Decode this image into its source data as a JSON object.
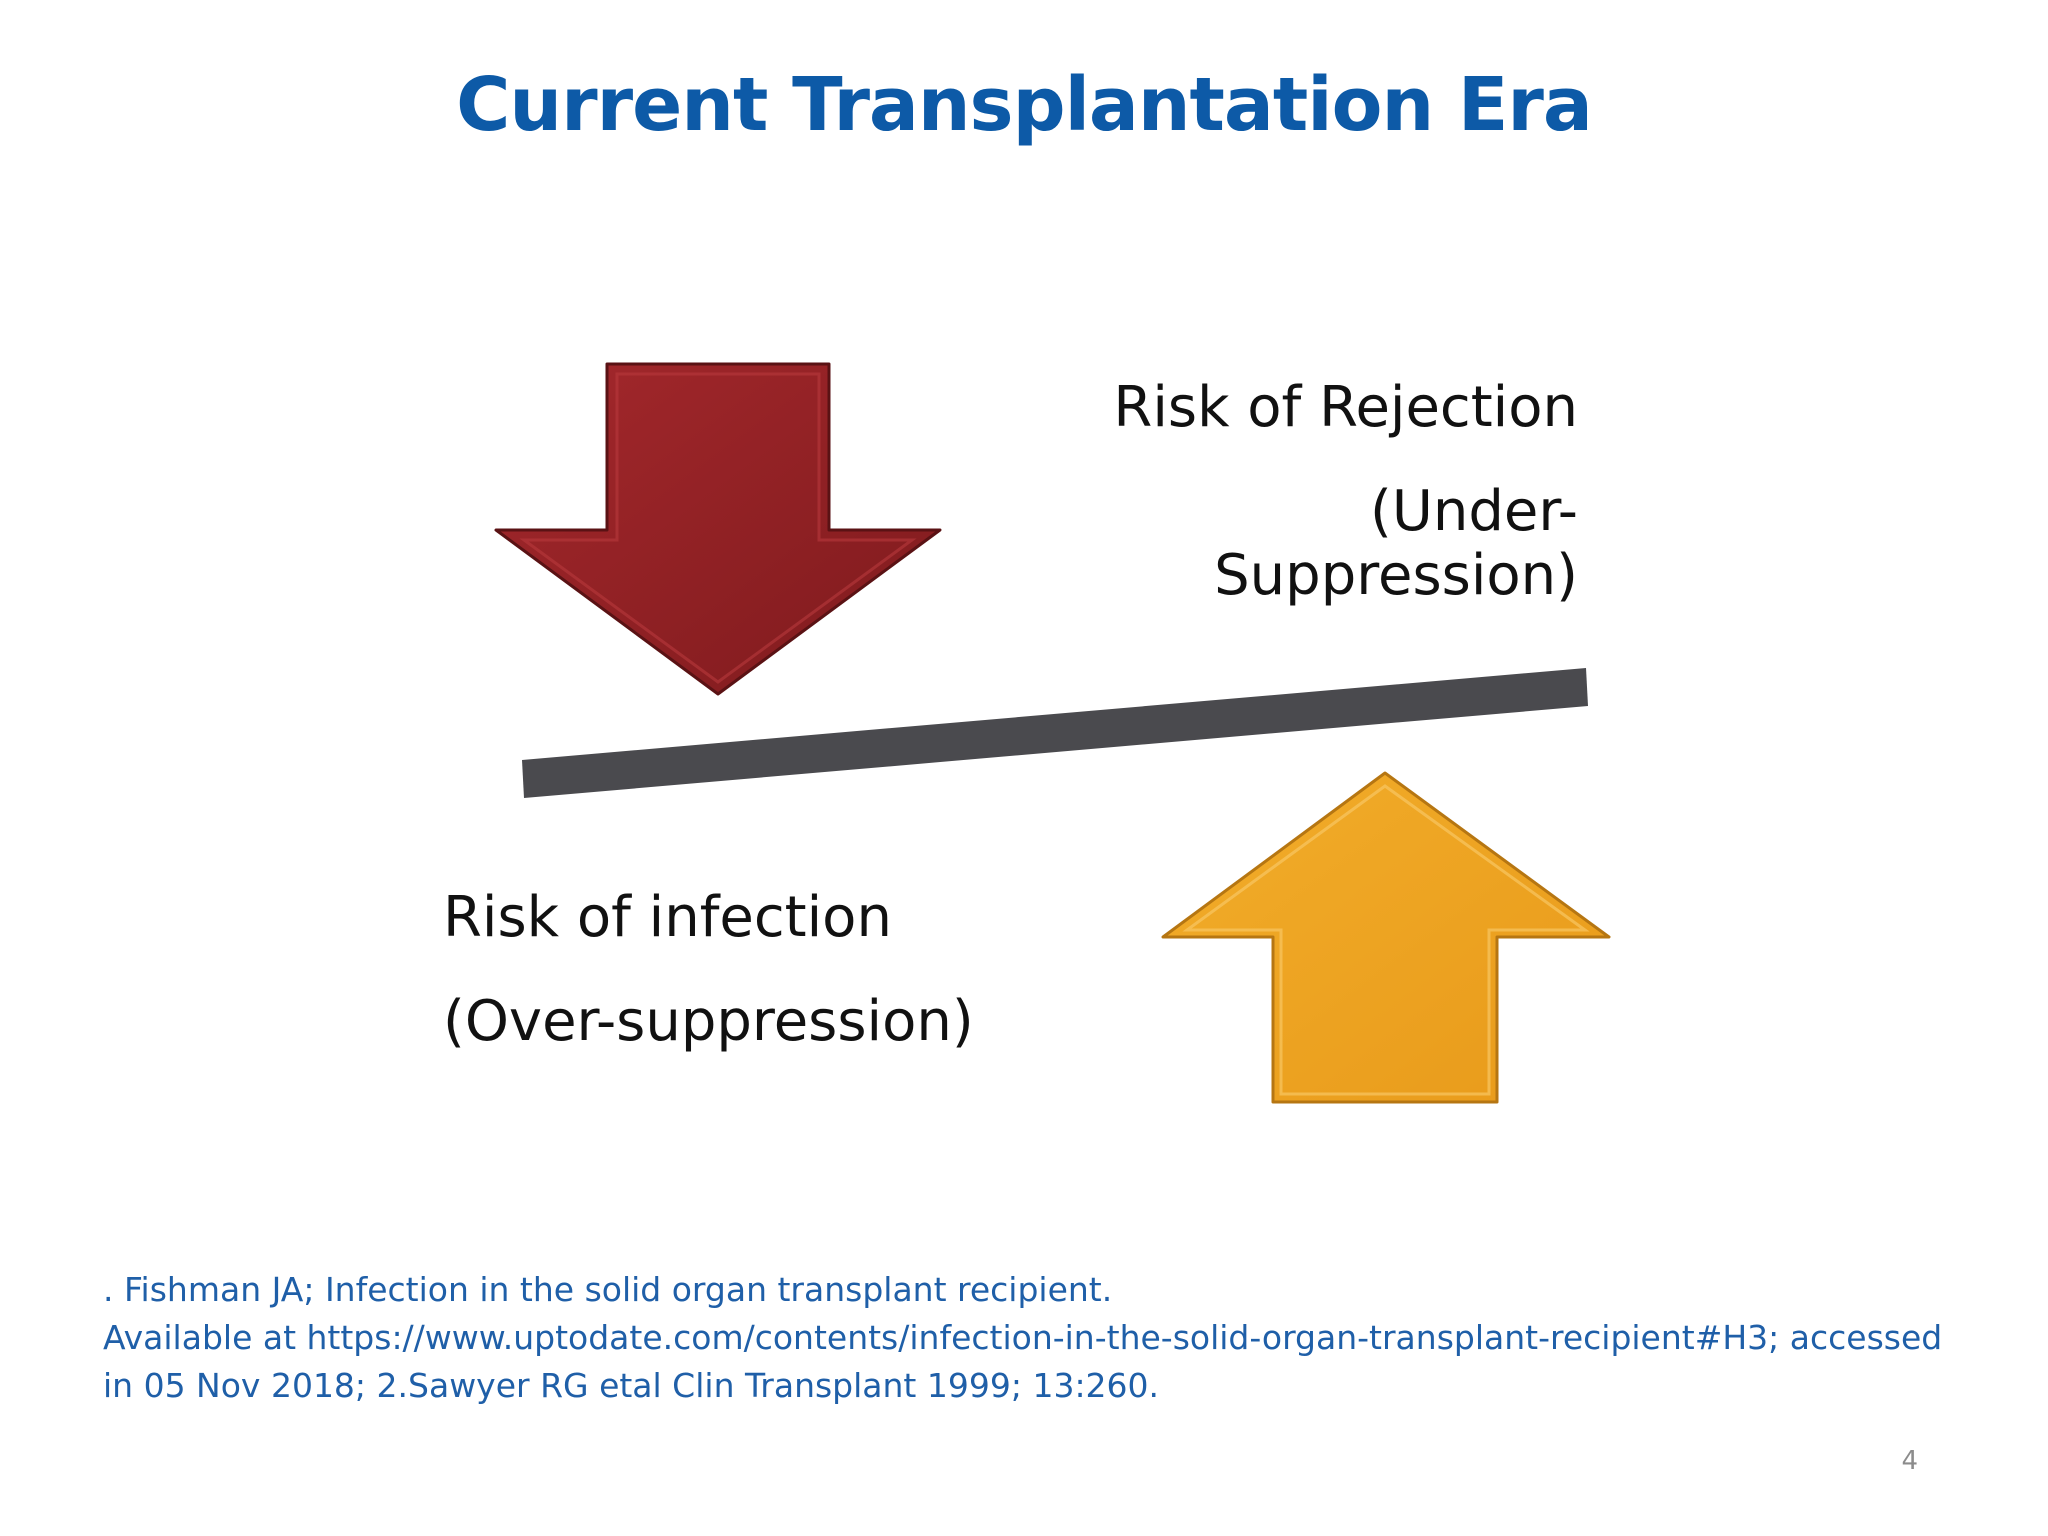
{
  "slide": {
    "title": "Current Transplantation Era",
    "page_number": "4"
  },
  "diagram": {
    "rejection_label": "Risk of Rejection",
    "rejection_sublabel": "(Under-Suppression)",
    "infection_label": "Risk of infection",
    "infection_sublabel": "(Over-suppression)",
    "colors": {
      "down_arrow": "#8b1f22",
      "up_arrow": "#eca020",
      "beam": "#4a4a4e"
    }
  },
  "citation": {
    "line1": ". Fishman JA; Infection in the solid organ transplant recipient.",
    "line2": "Available at https://www.uptodate.com/contents/infection-in-the-solid-organ-transplant-recipient#H3; accessed",
    "line3": "in 05 Nov 2018;  2.Sawyer RG etal Clin Transplant 1999; 13:260."
  }
}
